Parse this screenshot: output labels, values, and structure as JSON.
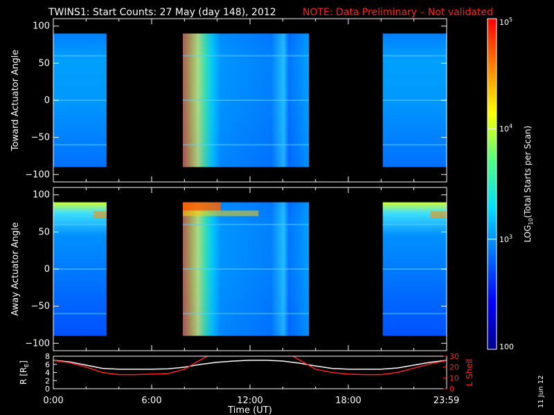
{
  "title": {
    "main": "TWINS1: Start Counts: 27 May (day 148), 2012",
    "note": "NOTE: Data Preliminary – Not validated",
    "color": "#ffffff",
    "note_color": "#ff2020"
  },
  "side_date": "11 Jun 12",
  "chart_data": [
    {
      "type": "heatmap",
      "ylabel": "Toward Actuator Angle",
      "ylim": [
        -110,
        110
      ],
      "yticks": [
        -100,
        -50,
        0,
        50,
        100
      ],
      "xlim": [
        0,
        24
      ],
      "data_ylim": [
        -90,
        90
      ],
      "segments": [
        {
          "x": [
            0.0,
            3.25
          ],
          "level": 0.3,
          "edge": null
        },
        {
          "x": [
            7.9,
            15.6
          ],
          "level": 0.35,
          "edge": "hot-left"
        },
        {
          "x": [
            20.1,
            24.0
          ],
          "level": 0.3,
          "edge": null
        }
      ]
    },
    {
      "type": "heatmap",
      "ylabel": "Away Actuator Angle",
      "ylim": [
        -110,
        110
      ],
      "yticks": [
        -100,
        -50,
        0,
        50,
        100
      ],
      "xlim": [
        0,
        24
      ],
      "data_ylim": [
        -90,
        90
      ],
      "segments": [
        {
          "x": [
            0.0,
            3.25
          ],
          "level": 0.25,
          "edge": "top-warm"
        },
        {
          "x": [
            7.9,
            15.6
          ],
          "level": 0.28,
          "edge": "hot-left"
        },
        {
          "x": [
            20.1,
            24.0
          ],
          "level": 0.25,
          "edge": "top-warm"
        }
      ]
    },
    {
      "type": "line",
      "ylabel": "R [R",
      "ylabel_sub": "E",
      "ylabel_end": "]",
      "y2label": "L Shell",
      "xlabel": "Time (UT)",
      "xlim": [
        0,
        24
      ],
      "ylim": [
        0,
        8
      ],
      "yticks": [
        0,
        2,
        4,
        6,
        8
      ],
      "y2lim": [
        0,
        30
      ],
      "y2ticks": [
        0,
        10,
        20,
        30
      ],
      "xtick_labels": [
        {
          "x": 0,
          "label": "0:00"
        },
        {
          "x": 6,
          "label": "6:00"
        },
        {
          "x": 12,
          "label": "12:00"
        },
        {
          "x": 18,
          "label": "18:00"
        },
        {
          "x": 23.98,
          "label": "23:59"
        }
      ],
      "series": [
        {
          "color": "#ffffff",
          "axis": "left",
          "x": [
            0,
            1,
            2,
            3,
            4,
            5,
            6,
            7,
            8,
            9,
            10,
            11,
            12,
            13,
            14,
            15,
            16,
            17,
            18,
            19,
            20,
            21,
            22,
            23,
            24
          ],
          "y": [
            7.0,
            6.6,
            5.8,
            5.0,
            4.8,
            4.8,
            4.8,
            4.9,
            5.3,
            6.0,
            6.5,
            6.8,
            7.0,
            7.0,
            6.8,
            6.3,
            5.6,
            5.0,
            4.8,
            4.8,
            4.8,
            5.1,
            5.8,
            6.5,
            7.0
          ]
        },
        {
          "color": "#ff2020",
          "axis": "right",
          "x": [
            0,
            1,
            2,
            3,
            4,
            5,
            6,
            7,
            8,
            8.8,
            9.6,
            14.4,
            15.2,
            16,
            17,
            18,
            19,
            20,
            21,
            22,
            23,
            24
          ],
          "y": [
            26,
            24,
            20,
            15,
            13,
            13,
            13.5,
            14,
            18,
            25,
            32,
            32,
            25,
            18,
            15,
            13.5,
            13,
            13,
            15,
            19,
            23,
            26
          ]
        }
      ]
    }
  ],
  "colorbar": {
    "label": "LOG",
    "label_sub": "10",
    "label_end": "(Total Starts per Scan)",
    "ticks": [
      {
        "frac": 0.0,
        "label": "100"
      },
      {
        "frac": 0.333,
        "label": "10",
        "sup": "3"
      },
      {
        "frac": 0.667,
        "label": "10",
        "sup": "4"
      },
      {
        "frac": 1.0,
        "label": "10",
        "sup": "5"
      }
    ],
    "stops": [
      "#00008f",
      "#0000ff",
      "#006fff",
      "#00dfff",
      "#50ff80",
      "#ffff00",
      "#ff8000",
      "#ff0000"
    ]
  }
}
